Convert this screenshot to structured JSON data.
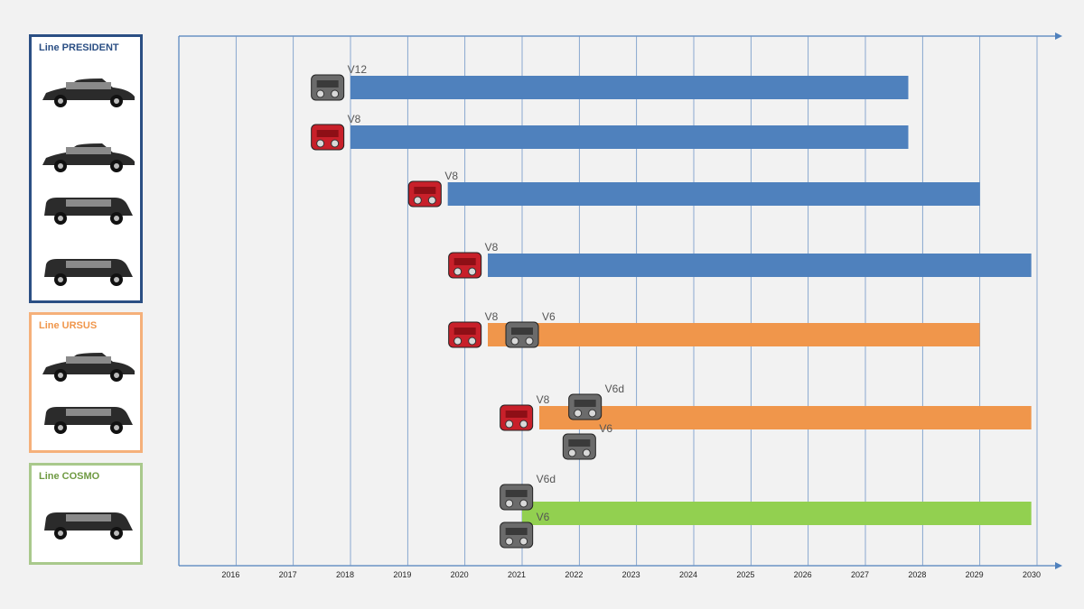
{
  "lines": [
    {
      "key": "president",
      "label": "Line PRESIDENT",
      "color": "#2b4f84",
      "car_count": 4
    },
    {
      "key": "ursus",
      "label": "Line URSUS",
      "color": "#f5b07a",
      "car_count": 2
    },
    {
      "key": "cosmo",
      "label": "Line COSMO",
      "color": "#a9c98c",
      "car_count": 1
    }
  ],
  "chart_data": {
    "type": "bar",
    "subtype": "gantt-timeline",
    "x_ticks": [
      "2016",
      "2017",
      "2018",
      "2019",
      "2020",
      "2021",
      "2022",
      "2023",
      "2024",
      "2025",
      "2026",
      "2027",
      "2028",
      "2029",
      "2030"
    ],
    "xlim": [
      2015,
      2030
    ],
    "grid": "vertical",
    "series_colors": {
      "president": "#4f81bd",
      "ursus": "#f0964b",
      "cosmo": "#92d050"
    },
    "bars": [
      {
        "line": "president",
        "start": 2018.0,
        "end": 2027.75,
        "engines": [
          {
            "label": "V12",
            "at": 2017.6
          }
        ]
      },
      {
        "line": "president",
        "start": 2018.0,
        "end": 2027.75,
        "engines": [
          {
            "label": "V8",
            "at": 2017.6
          }
        ]
      },
      {
        "line": "president",
        "start": 2019.7,
        "end": 2029.0,
        "engines": [
          {
            "label": "V8",
            "at": 2019.3
          }
        ]
      },
      {
        "line": "president",
        "start": 2020.4,
        "end": 2029.9,
        "engines": [
          {
            "label": "V8",
            "at": 2020.0
          }
        ]
      },
      {
        "line": "ursus",
        "start": 2020.4,
        "end": 2029.0,
        "engines": [
          {
            "label": "V8",
            "at": 2020.0
          },
          {
            "label": "V6",
            "at": 2021.0
          }
        ]
      },
      {
        "line": "ursus",
        "start": 2021.3,
        "end": 2029.9,
        "engines": [
          {
            "label": "V8",
            "at": 2020.9
          },
          {
            "label": "V6d",
            "at": 2022.1
          },
          {
            "label": "V6",
            "at": 2022.0
          }
        ]
      },
      {
        "line": "cosmo",
        "start": 2021.0,
        "end": 2029.9,
        "engines": [
          {
            "label": "V6d",
            "at": 2020.9
          },
          {
            "label": "V6",
            "at": 2020.9
          }
        ]
      }
    ]
  }
}
